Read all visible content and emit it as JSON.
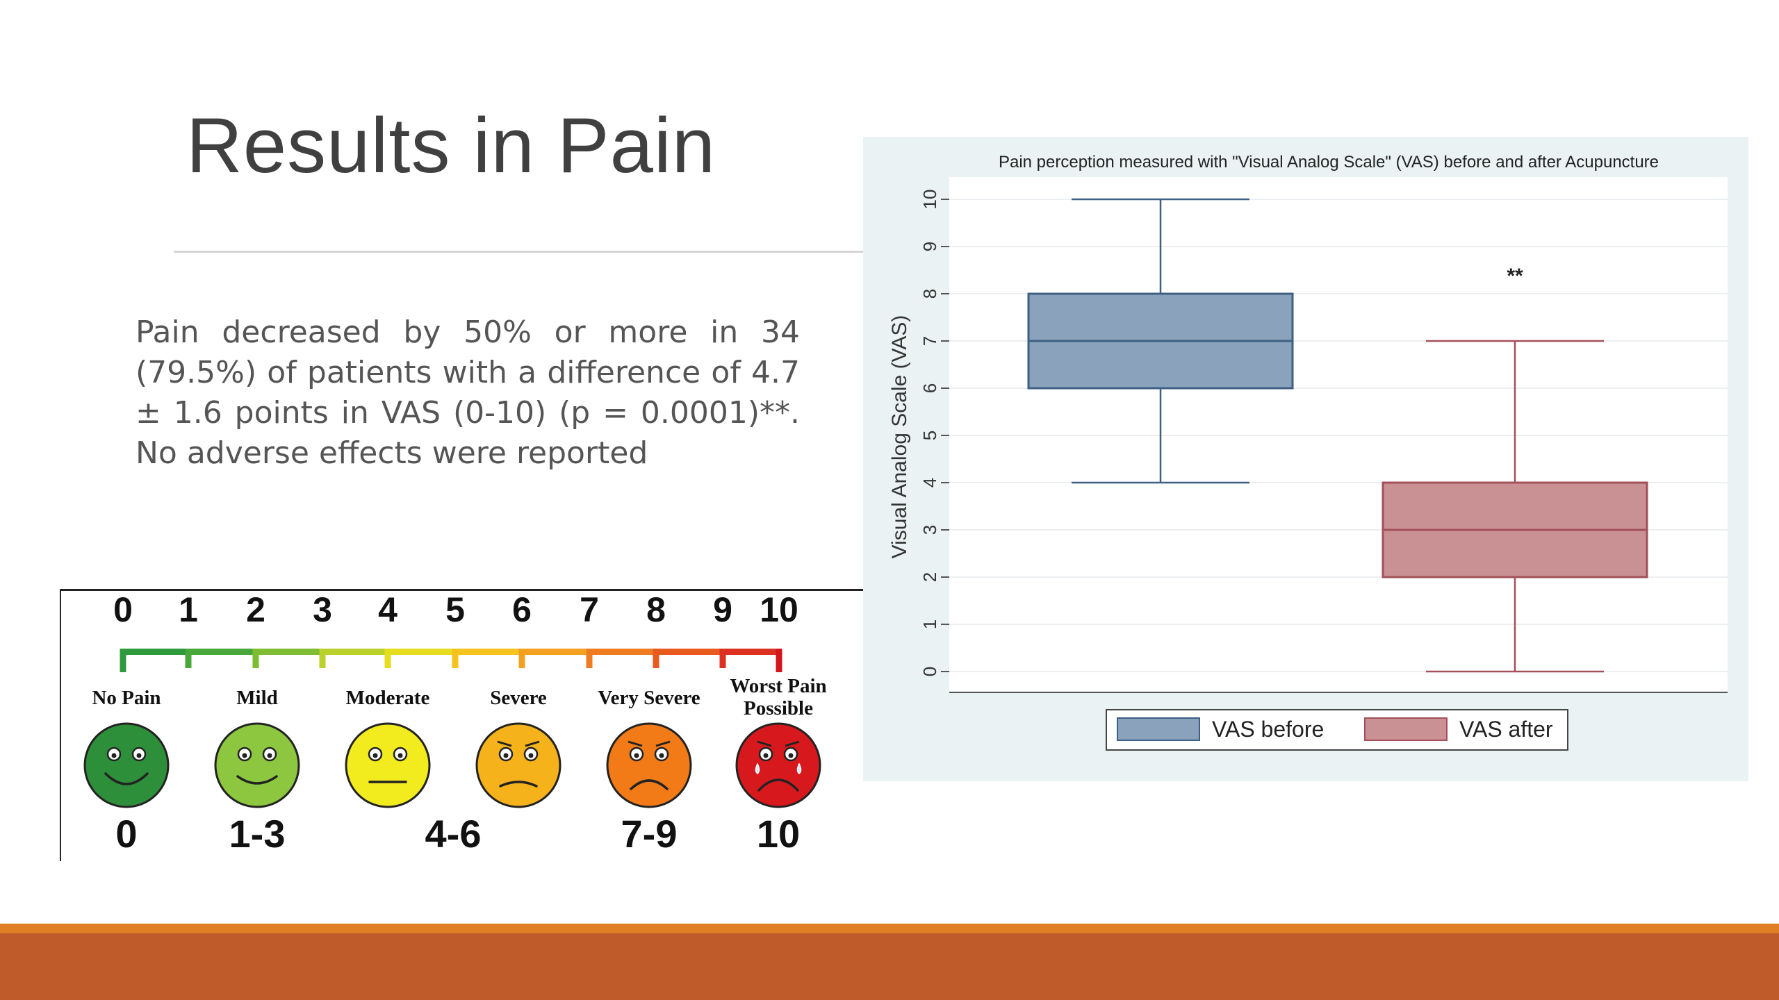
{
  "slide": {
    "title": "Results in Pain",
    "body": "Pain decreased by 50% or more in 34 (79.5%) of patients with a difference of 4.7 ± 1.6 points in VAS (0-10) (p = 0.0001)**. No adverse effects were reported"
  },
  "chart_data": {
    "type": "box",
    "title": "Pain perception measured with \"Visual Analog Scale\" (VAS) before and after Acupuncture",
    "xlabel": "",
    "ylabel": "Visual Analog Scale (VAS)",
    "ylim": [
      0,
      10
    ],
    "yticks": [
      "0",
      "1",
      "2",
      "3",
      "4",
      "5",
      "6",
      "7",
      "8",
      "9",
      "10"
    ],
    "grid": true,
    "legend_position": "bottom",
    "significance_label": "**",
    "series": [
      {
        "name": "VAS before",
        "min": 4,
        "q1": 6,
        "median": 7,
        "q3": 8,
        "max": 10,
        "color": "#8aa2bc",
        "stroke": "#3e5f84"
      },
      {
        "name": "VAS after",
        "min": 0,
        "q1": 2,
        "median": 3,
        "q3": 4,
        "max": 7,
        "color": "#c99194",
        "stroke": "#a3505a"
      }
    ]
  },
  "pain_scale": {
    "numbers": [
      "0",
      "1",
      "2",
      "3",
      "4",
      "5",
      "6",
      "7",
      "8",
      "9",
      "10"
    ],
    "bar_colors": [
      "#2e9a3c",
      "#48a83a",
      "#7ebc32",
      "#b9d12a",
      "#e6dd20",
      "#f5c21e",
      "#f4a020",
      "#ef7c20",
      "#e85a1e",
      "#dc3020",
      "#d2161c"
    ],
    "faces": [
      {
        "label": "No Pain",
        "color": "#2e8f3a",
        "range": "0",
        "mouth": "big-smile"
      },
      {
        "label": "Mild",
        "color": "#8dc63f",
        "range": "1-3",
        "mouth": "smile"
      },
      {
        "label": "Moderate",
        "color": "#f2ec1f",
        "range": "",
        "mouth": "flat"
      },
      {
        "label": "Severe",
        "color": "#f5b21b",
        "range": "",
        "mouth": "slight-frown"
      },
      {
        "label": "Very Severe",
        "color": "#f27b17",
        "range": "7-9",
        "mouth": "frown"
      },
      {
        "label": "Worst Pain Possible",
        "label_lines": [
          "Worst Pain",
          "Possible"
        ],
        "color": "#d7191e",
        "range": "10",
        "mouth": "big-frown"
      }
    ],
    "middle_range": "4-6"
  }
}
